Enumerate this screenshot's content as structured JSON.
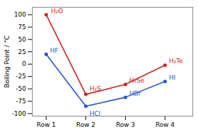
{
  "chart_data": {
    "type": "line",
    "x": [
      1,
      2,
      3,
      4
    ],
    "xlim": [
      0.65,
      4.7
    ],
    "xticks": [
      {
        "value": 1,
        "label": "Row 1"
      },
      {
        "value": 2,
        "label": "Row 2"
      },
      {
        "value": 3,
        "label": "Row 3"
      },
      {
        "value": 4,
        "label": "Row 4"
      }
    ],
    "ylabel": "Boiling Point / °C",
    "ylim": [
      -105,
      115
    ],
    "yticks": [
      -100,
      -75,
      -50,
      -25,
      0,
      25,
      50,
      75,
      100
    ],
    "grid": false,
    "marker": "circle",
    "series": [
      {
        "color": "#cc2222",
        "values": [
          100,
          -61,
          -41,
          -2
        ],
        "labels": [
          "H₂O",
          "H₂S",
          "H₂Se",
          "H₂Te"
        ]
      },
      {
        "color": "#2255cc",
        "values": [
          20,
          -85,
          -67,
          -35
        ],
        "labels": [
          "HF",
          "HCl",
          "HBr",
          "HI"
        ]
      }
    ]
  }
}
